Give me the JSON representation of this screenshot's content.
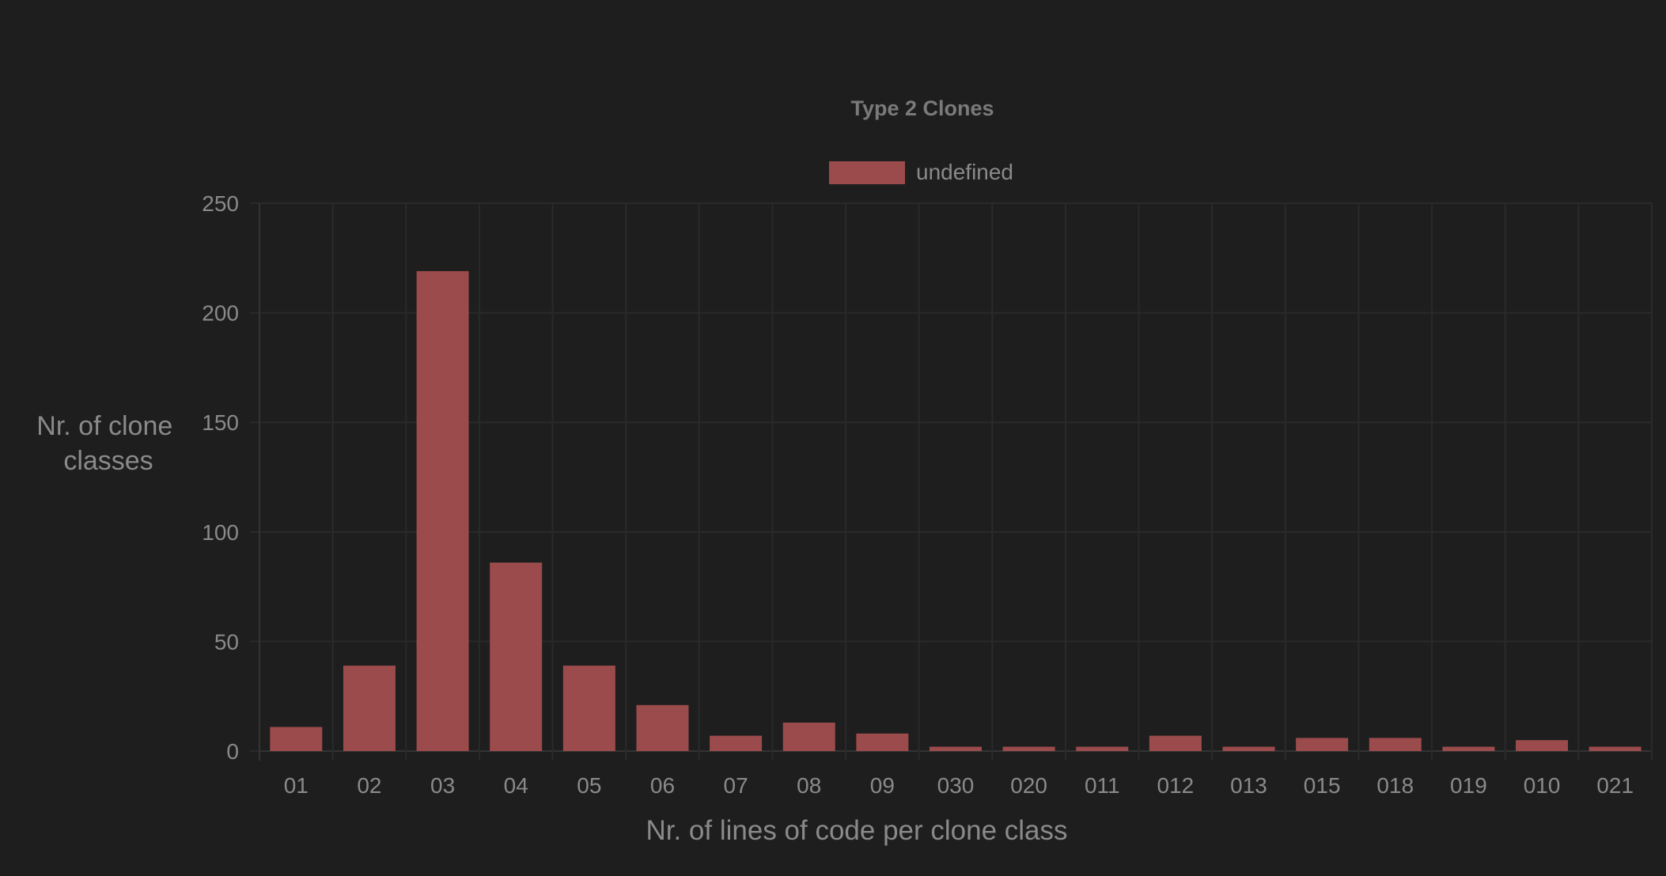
{
  "chart_data": {
    "type": "bar",
    "title": "Type 2 Clones",
    "legend": {
      "position": "top-center",
      "entries": [
        "undefined"
      ]
    },
    "xlabel": "Nr. of lines of code per clone class",
    "ylabel": [
      "Nr. of clone",
      "classes"
    ],
    "categories": [
      "01",
      "02",
      "03",
      "04",
      "05",
      "06",
      "07",
      "08",
      "09",
      "030",
      "020",
      "011",
      "012",
      "013",
      "015",
      "018",
      "019",
      "010",
      "021"
    ],
    "series": [
      {
        "name": "undefined",
        "values": [
          11,
          39,
          219,
          86,
          39,
          21,
          7,
          13,
          8,
          2,
          2,
          2,
          7,
          2,
          6,
          6,
          2,
          5,
          2
        ]
      }
    ],
    "ylim": [
      0,
      250
    ],
    "yticks": [
      "0",
      "50",
      "100",
      "150",
      "200",
      "250"
    ],
    "grid": true,
    "colors": {
      "background": "#1e1e1e",
      "bar": "#9b4b4b",
      "grid": "#2a2a2a",
      "text": "#8a8a8a",
      "title": "#7a7a7a"
    }
  }
}
